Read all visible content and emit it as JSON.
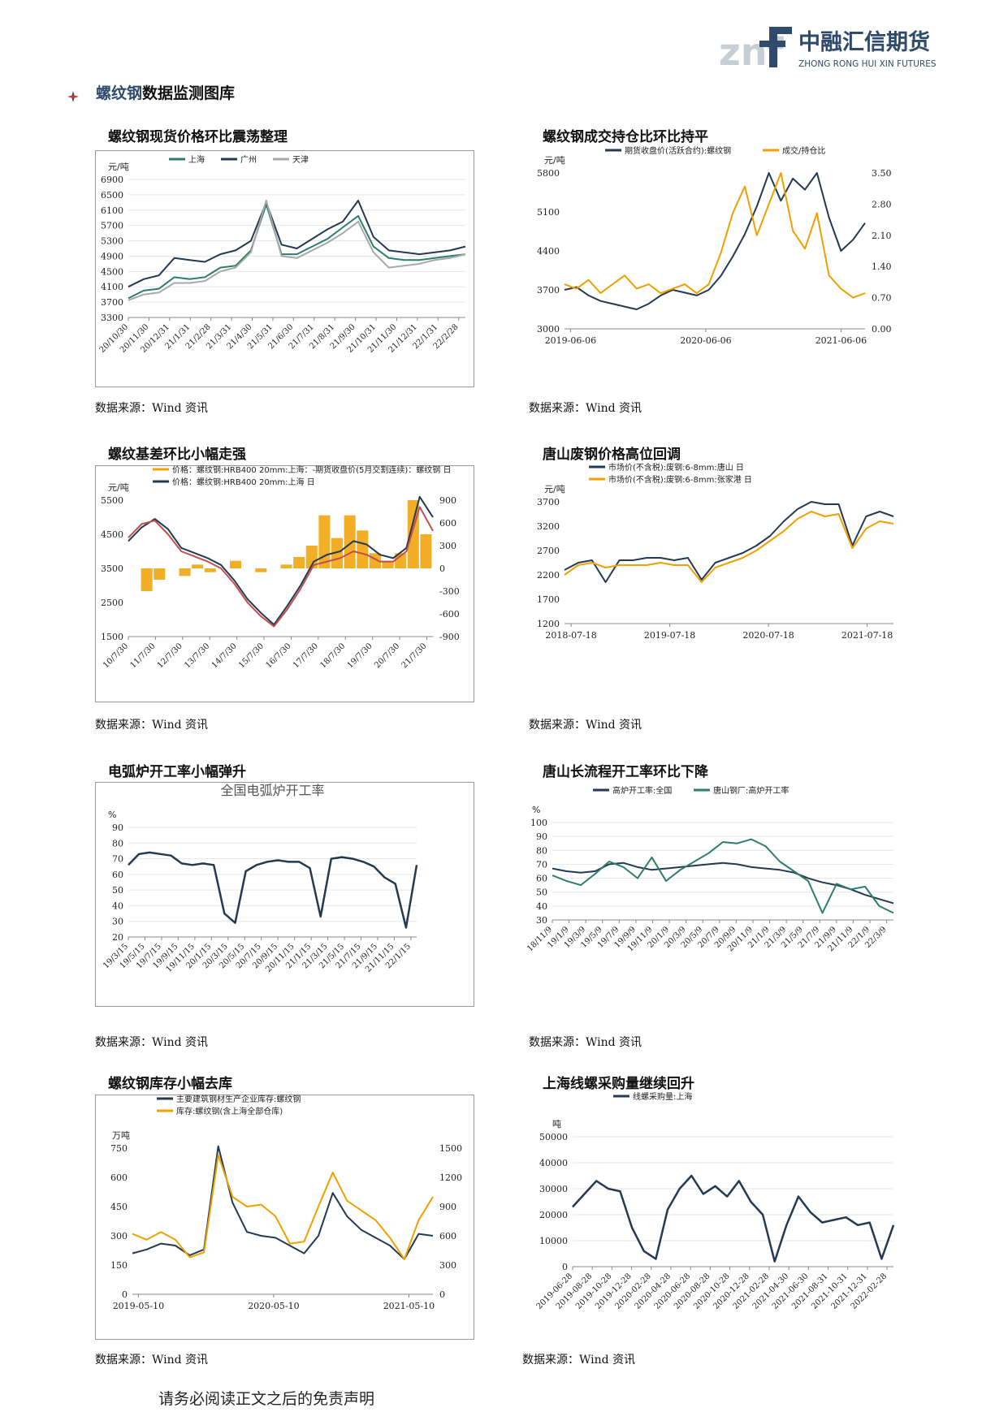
{
  "header": {
    "logo_letters": "znf",
    "company_cn": "中融汇信期货",
    "company_en": "ZHONG RONG HUI XIN FUTURES",
    "section_title_accent": "螺纹钢",
    "section_title_rest": "数据监测图库"
  },
  "panels": [
    {
      "title": "螺纹钢现货价格环比震荡整理",
      "source": "数据来源：Wind 资讯"
    },
    {
      "title": "螺纹钢成交持仓比环比持平",
      "source": "数据来源：Wind 资讯"
    },
    {
      "title": "螺纹基差环比小幅走强",
      "source": "数据来源：Wind 资讯"
    },
    {
      "title": "唐山废钢价格高位回调",
      "source": "数据来源：Wind 资讯"
    },
    {
      "title": "电弧炉开工率小幅弹升",
      "source": "数据来源：Wind 资讯"
    },
    {
      "title": "唐山长流程开工率环比下降",
      "source": "数据来源：Wind 资讯"
    },
    {
      "title": "螺纹钢库存小幅去库",
      "source": "数据来源：Wind 资讯"
    },
    {
      "title": "上海线螺采购量继续回升",
      "source": "数据来源：Wind 资讯"
    }
  ],
  "footer": "请务必阅读正文之后的免责声明",
  "chart_data": [
    {
      "type": "line",
      "unit": "元/吨",
      "x_ticks": [
        "20/10/30",
        "20/11/30",
        "20/12/31",
        "21/1/31",
        "21/2/28",
        "21/3/31",
        "21/4/30",
        "21/5/31",
        "21/6/30",
        "21/7/31",
        "21/8/31",
        "21/9/30",
        "21/10/31",
        "21/11/30",
        "21/12/31",
        "22/1/31",
        "22/2/28"
      ],
      "y_ticks": [
        3300,
        3700,
        4100,
        4500,
        4900,
        5300,
        5700,
        6100,
        6500,
        6900
      ],
      "ylim": [
        3300,
        6900
      ],
      "series": [
        {
          "name": "上海",
          "color": "#2e7d6b",
          "values": [
            3800,
            4000,
            4050,
            4350,
            4300,
            4350,
            4600,
            4650,
            5050,
            6250,
            4950,
            4950,
            5150,
            5350,
            5650,
            5950,
            5150,
            4850,
            4800,
            4800,
            4850,
            4900,
            4950
          ]
        },
        {
          "name": "广州",
          "color": "#233a52",
          "values": [
            4100,
            4300,
            4400,
            4850,
            4800,
            4750,
            4950,
            5050,
            5300,
            6300,
            5200,
            5100,
            5350,
            5600,
            5800,
            6350,
            5400,
            5050,
            5000,
            4950,
            5000,
            5050,
            5150
          ]
        },
        {
          "name": "天津",
          "color": "#a8a8a8",
          "values": [
            3750,
            3900,
            3950,
            4200,
            4200,
            4250,
            4500,
            4600,
            5000,
            6350,
            4900,
            4850,
            5050,
            5250,
            5500,
            5800,
            5000,
            4600,
            4650,
            4700,
            4800,
            4850,
            4950
          ]
        }
      ]
    },
    {
      "type": "line",
      "unit": "元/吨",
      "x_ticks": [
        "2019-06-06",
        "2020-06-06",
        "2021-06-06"
      ],
      "y_ticks": [
        3000,
        3700,
        4400,
        5100,
        5800
      ],
      "ylim": [
        3000,
        5800
      ],
      "y2_ticks": [
        "0.00",
        "0.70",
        "1.40",
        "2.10",
        "2.80",
        "3.50"
      ],
      "y2lim": [
        0,
        3.5
      ],
      "series": [
        {
          "name": "期货收盘价(活跃合约):螺纹钢",
          "color": "#233a52",
          "axis": "left",
          "values": [
            3700,
            3750,
            3600,
            3500,
            3450,
            3400,
            3350,
            3450,
            3600,
            3700,
            3650,
            3600,
            3700,
            3950,
            4300,
            4700,
            5200,
            5800,
            5300,
            5700,
            5500,
            5800,
            5000,
            4400,
            4600,
            4900
          ]
        },
        {
          "name": "成交/持仓比",
          "color": "#f0a000",
          "axis": "right",
          "values": [
            1.0,
            0.9,
            1.1,
            0.8,
            1.0,
            1.2,
            0.9,
            1.0,
            0.8,
            0.9,
            1.0,
            0.8,
            1.0,
            1.7,
            2.6,
            3.2,
            2.1,
            2.8,
            3.5,
            2.2,
            1.8,
            2.6,
            1.2,
            0.9,
            0.7,
            0.8
          ]
        }
      ]
    },
    {
      "type": "line",
      "unit": "元/吨",
      "x_ticks": [
        "10/7/30",
        "11/7/30",
        "12/7/30",
        "13/7/30",
        "14/7/30",
        "15/7/30",
        "16/7/30",
        "17/7/30",
        "18/7/30",
        "19/7/30",
        "20/7/30",
        "21/7/30"
      ],
      "y_ticks": [
        1500,
        2500,
        3500,
        4500,
        5500
      ],
      "ylim": [
        1500,
        5500
      ],
      "y2_ticks": [
        -900,
        -600,
        -300,
        0,
        300,
        600,
        900
      ],
      "y2lim": [
        -900,
        900
      ],
      "series": [
        {
          "name": "价格：螺纹钢:HRB400 20mm:上海：-期货收盘价(5月交割连续)：螺纹钢 日",
          "color": "#f0a000",
          "axis": "right",
          "kind": "bar"
        },
        {
          "name": "价格：螺纹钢:HRB400 20mm:上海 日",
          "color": "#233a52",
          "axis": "left",
          "values": [
            4300,
            4700,
            4950,
            4650,
            4100,
            3950,
            3800,
            3600,
            3150,
            2600,
            2200,
            1850,
            2400,
            3000,
            3700,
            3900,
            4000,
            4300,
            4200,
            3900,
            3800,
            4100,
            5600,
            5000
          ]
        },
        {
          "name": "期货收盘价(5月交割连续)：螺纹钢",
          "color": "#c0504d",
          "axis": "left",
          "values": [
            4400,
            4800,
            4900,
            4500,
            4000,
            3850,
            3700,
            3500,
            3050,
            2500,
            2100,
            1800,
            2300,
            2900,
            3600,
            3700,
            3800,
            4000,
            3900,
            3700,
            3700,
            4000,
            5300,
            4600
          ]
        }
      ],
      "basis_values": [
        0,
        -300,
        -150,
        0,
        -100,
        50,
        -50,
        0,
        100,
        0,
        -50,
        0,
        50,
        150,
        300,
        700,
        400,
        700,
        500,
        200,
        100,
        200,
        900,
        450
      ]
    },
    {
      "type": "line",
      "unit": "元/吨",
      "x_ticks": [
        "2018-07-18",
        "2019-07-18",
        "2020-07-18",
        "2021-07-18"
      ],
      "y_ticks": [
        1200,
        1700,
        2200,
        2700,
        3200,
        3700
      ],
      "ylim": [
        1200,
        3700
      ],
      "series": [
        {
          "name": "市场价(不含税):废钢:6-8mm:唐山 日",
          "color": "#233a52",
          "values": [
            2300,
            2450,
            2500,
            2050,
            2500,
            2500,
            2550,
            2550,
            2500,
            2550,
            2100,
            2450,
            2550,
            2650,
            2800,
            3000,
            3300,
            3550,
            3700,
            3650,
            3650,
            2800,
            3400,
            3500,
            3400
          ]
        },
        {
          "name": "市场价(不含税):废钢:6-8mm:张家港 日",
          "color": "#f0a000",
          "values": [
            2200,
            2400,
            2450,
            2350,
            2400,
            2400,
            2400,
            2450,
            2400,
            2400,
            2050,
            2350,
            2450,
            2550,
            2700,
            2900,
            3100,
            3350,
            3500,
            3400,
            3450,
            2750,
            3150,
            3300,
            3250
          ]
        }
      ]
    },
    {
      "type": "line",
      "title": "全国电弧炉开工率",
      "unit": "%",
      "x_ticks": [
        "19/3/15",
        "19/5/15",
        "19/7/15",
        "19/9/15",
        "19/11/15",
        "20/1/15",
        "20/3/15",
        "20/5/15",
        "20/7/15",
        "20/9/15",
        "20/11/15",
        "21/1/15",
        "21/3/15",
        "21/5/15",
        "21/7/15",
        "21/9/15",
        "21/11/15",
        "22/1/15"
      ],
      "y_ticks": [
        20,
        30,
        40,
        50,
        60,
        70,
        80,
        90
      ],
      "ylim": [
        20,
        90
      ],
      "series": [
        {
          "name": "全国电弧炉开工率",
          "color": "#233a52",
          "values": [
            66,
            73,
            74,
            73,
            72,
            67,
            66,
            67,
            66,
            35,
            29,
            62,
            66,
            68,
            69,
            68,
            68,
            64,
            33,
            70,
            71,
            70,
            68,
            65,
            58,
            54,
            26,
            66
          ]
        }
      ]
    },
    {
      "type": "line",
      "unit": "%",
      "x_ticks": [
        "18/11/9",
        "19/1/9",
        "19/3/9",
        "19/5/9",
        "19/7/9",
        "19/9/9",
        "19/11/9",
        "20/1/9",
        "20/3/9",
        "20/5/9",
        "20/7/9",
        "20/9/9",
        "20/11/9",
        "21/1/9",
        "21/3/9",
        "21/5/9",
        "21/7/9",
        "21/9/9",
        "21/11/9",
        "22/1/9",
        "22/3/9"
      ],
      "y_ticks": [
        30,
        40,
        50,
        60,
        70,
        80,
        90,
        100
      ],
      "ylim": [
        30,
        100
      ],
      "series": [
        {
          "name": "高炉开工率:全国",
          "color": "#233a52",
          "values": [
            67,
            65,
            64,
            65,
            70,
            71,
            68,
            66,
            67,
            68,
            69,
            70,
            71,
            70,
            68,
            67,
            66,
            64,
            60,
            57,
            55,
            52,
            48,
            45,
            42
          ]
        },
        {
          "name": "唐山钢厂:高炉开工率",
          "color": "#2e7d6b",
          "values": [
            62,
            58,
            55,
            63,
            72,
            68,
            60,
            75,
            58,
            66,
            72,
            78,
            86,
            85,
            88,
            83,
            72,
            65,
            58,
            35,
            56,
            52,
            54,
            40,
            35
          ]
        }
      ]
    },
    {
      "type": "line",
      "unit": "万吨",
      "x_ticks": [
        "2019-05-10",
        "2020-05-10",
        "2021-05-10"
      ],
      "y_ticks": [
        0,
        150,
        300,
        450,
        600,
        750
      ],
      "ylim": [
        0,
        750
      ],
      "y2_ticks": [
        0,
        300,
        600,
        900,
        1200,
        1500
      ],
      "y2lim": [
        0,
        1500
      ],
      "series": [
        {
          "name": "主要建筑钢材生产企业库存:螺纹钢",
          "color": "#233a52",
          "axis": "left",
          "values": [
            210,
            230,
            260,
            250,
            200,
            230,
            760,
            470,
            320,
            300,
            290,
            250,
            210,
            300,
            520,
            400,
            330,
            290,
            250,
            180,
            310,
            300
          ]
        },
        {
          "name": "库存:螺纹钢(含上海全部仓库)",
          "color": "#f0a000",
          "axis": "right",
          "values": [
            620,
            560,
            640,
            560,
            380,
            430,
            1430,
            1000,
            900,
            920,
            800,
            520,
            540,
            900,
            1250,
            960,
            860,
            760,
            580,
            360,
            760,
            1000
          ]
        }
      ]
    },
    {
      "type": "line",
      "unit": "吨",
      "x_ticks": [
        "2019-06-28",
        "2019-08-28",
        "2019-10-28",
        "2019-12-28",
        "2020-02-28",
        "2020-04-28",
        "2020-06-28",
        "2020-08-28",
        "2020-10-28",
        "2020-12-28",
        "2021-02-28",
        "2021-04-30",
        "2021-06-30",
        "2021-08-31",
        "2021-10-31",
        "2021-12-31",
        "2022-02-28"
      ],
      "y_ticks": [
        0,
        10000,
        20000,
        30000,
        40000,
        50000
      ],
      "ylim": [
        0,
        50000
      ],
      "series": [
        {
          "name": "线螺采购量:上海",
          "color": "#233a52",
          "values": [
            23000,
            28000,
            33000,
            30000,
            29000,
            15000,
            6000,
            3000,
            22000,
            30000,
            35000,
            28000,
            31000,
            27000,
            33000,
            25000,
            20000,
            2000,
            16000,
            27000,
            21000,
            17000,
            18000,
            19000,
            16000,
            17000,
            3000,
            16000
          ]
        }
      ]
    }
  ]
}
